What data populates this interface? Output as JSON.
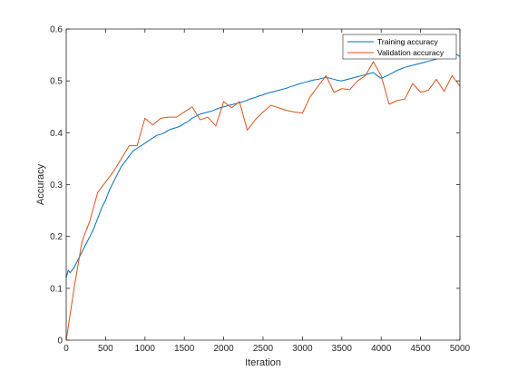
{
  "chart_data": {
    "type": "line",
    "title": "",
    "xlabel": "Iteration",
    "ylabel": "Accuracy",
    "xlim": [
      0,
      5000
    ],
    "ylim": [
      0,
      0.6
    ],
    "xticks": [
      0,
      500,
      1000,
      1500,
      2000,
      2500,
      3000,
      3500,
      4000,
      4500,
      5000
    ],
    "yticks": [
      0,
      0.1,
      0.2,
      0.3,
      0.4,
      0.5,
      0.6
    ],
    "xtick_labels": [
      "0",
      "500",
      "1000",
      "1500",
      "2000",
      "2500",
      "3000",
      "3500",
      "4000",
      "4500",
      "5000"
    ],
    "ytick_labels": [
      "0",
      "0.1",
      "0.2",
      "0.3",
      "0.4",
      "0.5",
      "0.6"
    ],
    "grid": false,
    "legend_position": "top-right",
    "series": [
      {
        "name": "Training accuracy",
        "color": "#0072BD",
        "x": [
          0,
          25,
          50,
          100,
          150,
          200,
          250,
          300,
          350,
          400,
          450,
          500,
          550,
          600,
          650,
          700,
          750,
          800,
          850,
          900,
          950,
          1000,
          1050,
          1100,
          1150,
          1200,
          1250,
          1300,
          1350,
          1400,
          1450,
          1500,
          1550,
          1600,
          1650,
          1700,
          1750,
          1800,
          1850,
          1900,
          1950,
          2000,
          2050,
          2100,
          2150,
          2200,
          2250,
          2300,
          2350,
          2400,
          2450,
          2500,
          2550,
          2600,
          2650,
          2700,
          2750,
          2800,
          2850,
          2900,
          2950,
          3000,
          3050,
          3100,
          3150,
          3200,
          3250,
          3300,
          3350,
          3400,
          3450,
          3500,
          3550,
          3600,
          3650,
          3700,
          3750,
          3800,
          3850,
          3900,
          3950,
          4000,
          4050,
          4100,
          4150,
          4200,
          4250,
          4300,
          4350,
          4400,
          4450,
          4500,
          4550,
          4600,
          4650,
          4700,
          4750,
          4800,
          4850,
          4900,
          4950,
          5000
        ],
        "y": [
          0.12,
          0.135,
          0.13,
          0.14,
          0.155,
          0.17,
          0.185,
          0.2,
          0.215,
          0.235,
          0.255,
          0.27,
          0.29,
          0.305,
          0.32,
          0.335,
          0.345,
          0.355,
          0.365,
          0.37,
          0.375,
          0.38,
          0.385,
          0.39,
          0.395,
          0.397,
          0.4,
          0.405,
          0.408,
          0.41,
          0.413,
          0.418,
          0.422,
          0.428,
          0.432,
          0.436,
          0.438,
          0.44,
          0.442,
          0.445,
          0.448,
          0.45,
          0.452,
          0.454,
          0.456,
          0.458,
          0.46,
          0.463,
          0.466,
          0.468,
          0.471,
          0.473,
          0.476,
          0.478,
          0.48,
          0.482,
          0.484,
          0.486,
          0.489,
          0.491,
          0.494,
          0.496,
          0.498,
          0.5,
          0.502,
          0.503,
          0.505,
          0.507,
          0.505,
          0.503,
          0.501,
          0.5,
          0.502,
          0.504,
          0.506,
          0.508,
          0.51,
          0.512,
          0.514,
          0.516,
          0.51,
          0.505,
          0.508,
          0.512,
          0.516,
          0.52,
          0.523,
          0.526,
          0.528,
          0.53,
          0.532,
          0.534,
          0.536,
          0.538,
          0.54,
          0.542,
          0.544,
          0.546,
          0.548,
          0.55,
          0.552,
          0.547
        ]
      },
      {
        "name": "Validation accuracy",
        "color": "#D95319",
        "x": [
          0,
          100,
          200,
          300,
          400,
          500,
          600,
          700,
          800,
          900,
          1000,
          1100,
          1200,
          1300,
          1400,
          1500,
          1600,
          1700,
          1800,
          1900,
          2000,
          2100,
          2200,
          2300,
          2400,
          2500,
          2600,
          2700,
          2800,
          2900,
          3000,
          3100,
          3200,
          3300,
          3400,
          3500,
          3600,
          3700,
          3800,
          3900,
          4000,
          4100,
          4200,
          4300,
          4400,
          4500,
          4600,
          4700,
          4800,
          4900,
          5000
        ],
        "y": [
          0.0,
          0.1,
          0.19,
          0.23,
          0.285,
          0.305,
          0.325,
          0.35,
          0.375,
          0.375,
          0.428,
          0.415,
          0.428,
          0.43,
          0.43,
          0.44,
          0.45,
          0.425,
          0.43,
          0.413,
          0.46,
          0.448,
          0.46,
          0.405,
          0.425,
          0.44,
          0.453,
          0.448,
          0.443,
          0.44,
          0.438,
          0.47,
          0.49,
          0.51,
          0.478,
          0.485,
          0.483,
          0.5,
          0.51,
          0.537,
          0.51,
          0.455,
          0.462,
          0.465,
          0.495,
          0.478,
          0.482,
          0.503,
          0.48,
          0.51,
          0.49
        ]
      }
    ]
  }
}
